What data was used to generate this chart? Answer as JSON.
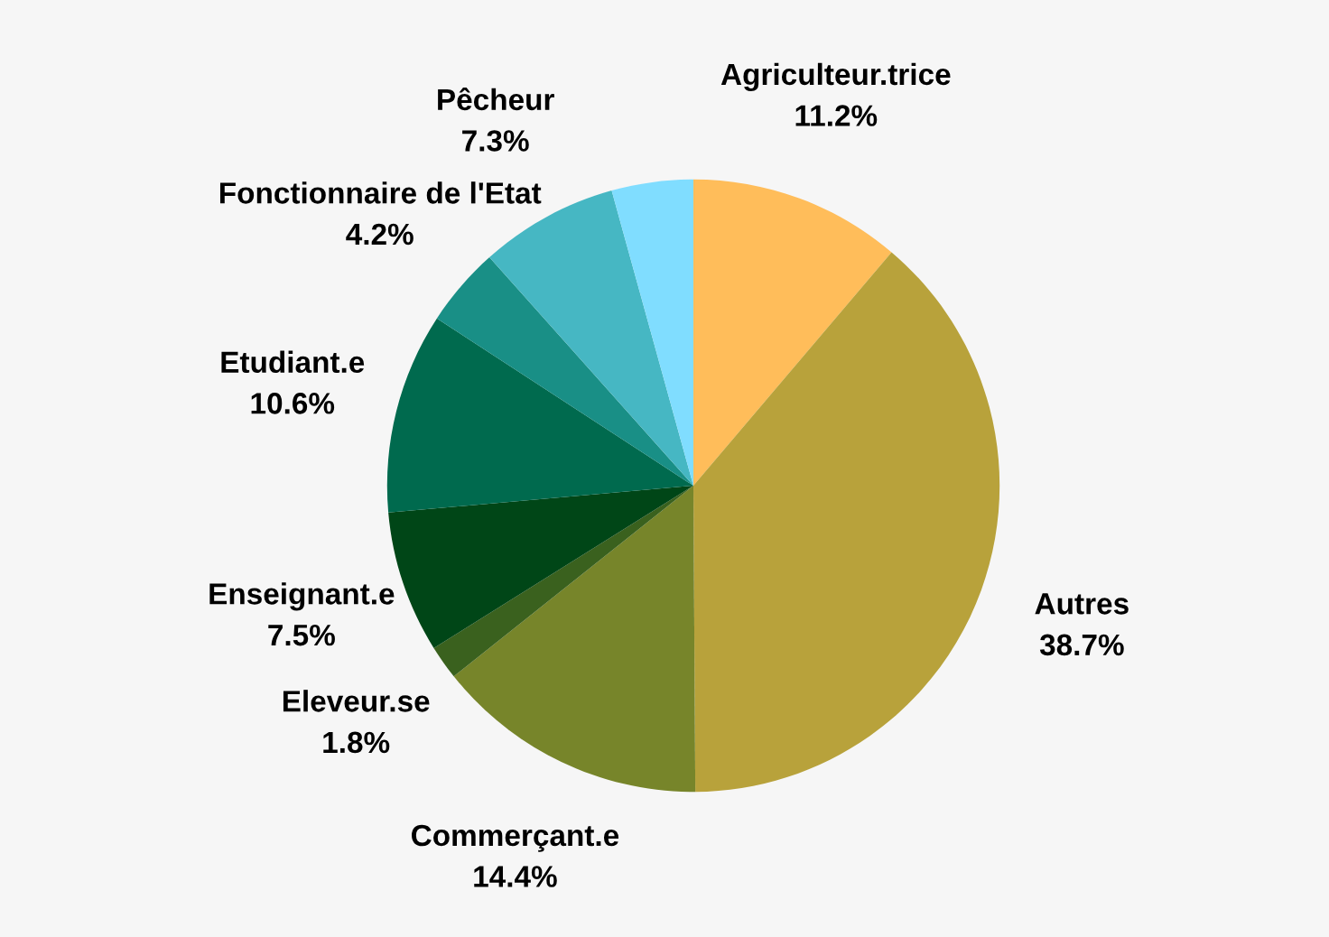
{
  "chart_data": {
    "type": "pie",
    "categories": [
      "Agriculteur.trice",
      "Autres",
      "Commerçant.e",
      "Eleveur.se",
      "Enseignant.e",
      "Etudiant.e",
      "Fonctionnaire de l'Etat",
      "Pêcheur",
      null
    ],
    "values": [
      11.2,
      38.7,
      14.4,
      1.8,
      7.5,
      10.6,
      4.2,
      7.3,
      4.3
    ],
    "value_labels": [
      "11.2%",
      "38.7%",
      "14.4%",
      "1.8%",
      "7.5%",
      "10.6%",
      "4.2%",
      "7.3%",
      null
    ],
    "colors": [
      "#ffbd5a",
      "#b8a23b",
      "#77852a",
      "#3a611e",
      "#004617",
      "#006a4e",
      "#198f86",
      "#46b7c3",
      "#80ddff"
    ]
  }
}
